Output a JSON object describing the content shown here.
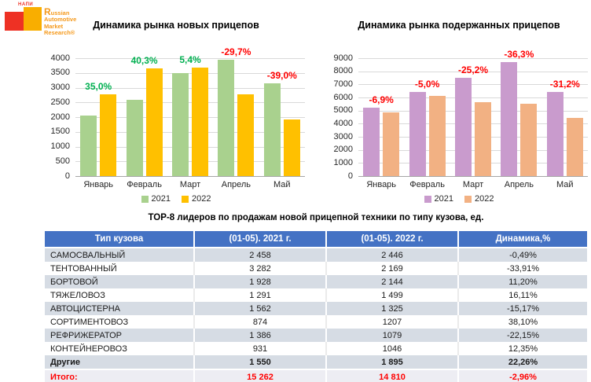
{
  "logo": {
    "napi": "НАПИ",
    "brand_lines": [
      "Russian",
      "Automotive",
      "Market",
      "Research®"
    ],
    "colors": {
      "red": "#EE3124",
      "orange": "#F9AE00",
      "text": "#F5991B"
    }
  },
  "chart_data": [
    {
      "type": "bar",
      "title": "Динамика рынка новых прицепов",
      "categories": [
        "Январь",
        "Февраль",
        "Март",
        "Апрель",
        "Май"
      ],
      "series": [
        {
          "name": "2021",
          "color": "#A9D18E",
          "values": [
            2050,
            2600,
            3500,
            3950,
            3150
          ]
        },
        {
          "name": "2022",
          "color": "#FFC000",
          "values": [
            2770,
            3650,
            3690,
            2780,
            1920
          ]
        }
      ],
      "point_labels": [
        {
          "text": "35,0%",
          "color": "#00B050"
        },
        {
          "text": "40,3%",
          "color": "#00B050"
        },
        {
          "text": "5,4%",
          "color": "#00B050"
        },
        {
          "text": "-29,7%",
          "color": "#FF0000"
        },
        {
          "text": "-39,0%",
          "color": "#FF0000"
        }
      ],
      "ylim": [
        0,
        4000
      ],
      "ytick": 500,
      "grid": true,
      "legend_position": "bottom"
    },
    {
      "type": "bar",
      "title": "Динамика рынка подержанных прицепов",
      "categories": [
        "Январь",
        "Февраль",
        "Март",
        "Апрель",
        "Май"
      ],
      "series": [
        {
          "name": "2021",
          "color": "#C99BCD",
          "values": [
            5200,
            6450,
            7520,
            8700,
            6450
          ]
        },
        {
          "name": "2022",
          "color": "#F2B183",
          "values": [
            4840,
            6130,
            5650,
            5540,
            4450
          ]
        }
      ],
      "point_labels": [
        {
          "text": "-6,9%",
          "color": "#FF0000"
        },
        {
          "text": "-5,0%",
          "color": "#FF0000"
        },
        {
          "text": "-25,2%",
          "color": "#FF0000"
        },
        {
          "text": "-36,3%",
          "color": "#FF0000"
        },
        {
          "text": "-31,2%",
          "color": "#FF0000"
        }
      ],
      "ylim": [
        0,
        9000
      ],
      "ytick": 1000,
      "grid": true,
      "legend_position": "bottom"
    }
  ],
  "table": {
    "title": "ТОР-8 лидеров по продажам новой прицепной техники по типу кузова, ед.",
    "headers": [
      "Тип кузова",
      "(01-05). 2021 г.",
      "(01-05). 2022 г.",
      "Динамика,%"
    ],
    "rows": [
      {
        "cells": [
          "САМОСВАЛЬНЫЙ",
          "2 458",
          "2 446",
          "-0,49%"
        ]
      },
      {
        "cells": [
          "ТЕНТОВАННЫЙ",
          "3 282",
          "2 169",
          "-33,91%"
        ]
      },
      {
        "cells": [
          "БОРТОВОЙ",
          "1 928",
          "2 144",
          "11,20%"
        ]
      },
      {
        "cells": [
          "ТЯЖЕЛОВОЗ",
          "1 291",
          "1 499",
          "16,11%"
        ]
      },
      {
        "cells": [
          "АВТОЦИСТЕРНА",
          "1 562",
          "1 325",
          "-15,17%"
        ]
      },
      {
        "cells": [
          "СОРТИМЕНТОВОЗ",
          "874",
          "1207",
          "38,10%"
        ]
      },
      {
        "cells": [
          "РЕФРИЖЕРАТОР",
          "1 386",
          "1079",
          "-22,15%"
        ]
      },
      {
        "cells": [
          "КОНТЕЙНЕРОВОЗ",
          "931",
          "1046",
          "12,35%"
        ]
      },
      {
        "cells": [
          "Другие",
          "1 550",
          "1 895",
          "22,26%"
        ],
        "bold": true
      },
      {
        "cells": [
          "Итого:",
          "15 262",
          "14 810",
          "-2,96%"
        ],
        "bold": true,
        "total": true
      }
    ],
    "accent": {
      "header_bg": "#4472C4",
      "shaded_bg": "#D6DCE4",
      "total_bg": "#EDEDF3",
      "total_color": "#FF0000"
    }
  }
}
